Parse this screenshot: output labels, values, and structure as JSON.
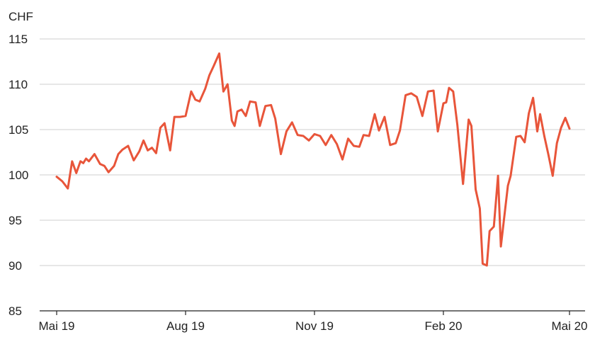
{
  "chart_data": {
    "type": "line",
    "ylabel": "CHF",
    "ylim": [
      85,
      115
    ],
    "yticks": [
      85,
      90,
      95,
      100,
      105,
      110,
      115
    ],
    "xlim": [
      "2019-05-01",
      "2020-05-01"
    ],
    "xticks": [
      "Mai 19",
      "Aug 19",
      "Nov 19",
      "Feb 20",
      "Mai 20"
    ],
    "xtick_dates": [
      "2019-05-01",
      "2019-08-01",
      "2019-11-01",
      "2020-02-01",
      "2020-05-01"
    ],
    "grid": "horizontal",
    "series_color": "#e8553a",
    "series": [
      {
        "x": [
          "2019-05-01",
          "2019-05-05",
          "2019-05-09",
          "2019-05-12",
          "2019-05-15",
          "2019-05-18",
          "2019-05-20",
          "2019-05-22",
          "2019-05-24",
          "2019-05-28",
          "2019-06-01",
          "2019-06-04",
          "2019-06-07",
          "2019-06-11",
          "2019-06-14",
          "2019-06-17",
          "2019-06-21",
          "2019-06-25",
          "2019-06-29",
          "2019-07-02",
          "2019-07-05",
          "2019-07-08",
          "2019-07-11",
          "2019-07-14",
          "2019-07-17",
          "2019-07-21",
          "2019-07-24",
          "2019-07-28",
          "2019-08-01",
          "2019-08-05",
          "2019-08-08",
          "2019-08-11",
          "2019-08-15",
          "2019-08-18",
          "2019-08-21",
          "2019-08-25",
          "2019-08-28",
          "2019-08-31",
          "2019-09-03",
          "2019-09-05",
          "2019-09-07",
          "2019-09-10",
          "2019-09-13",
          "2019-09-16",
          "2019-09-20",
          "2019-09-23",
          "2019-09-27",
          "2019-10-01",
          "2019-10-04",
          "2019-10-08",
          "2019-10-12",
          "2019-10-16",
          "2019-10-20",
          "2019-10-24",
          "2019-10-28",
          "2019-11-01",
          "2019-11-05",
          "2019-11-09",
          "2019-11-13",
          "2019-11-17",
          "2019-11-21",
          "2019-11-25",
          "2019-11-29",
          "2019-12-03",
          "2019-12-06",
          "2019-12-10",
          "2019-12-14",
          "2019-12-17",
          "2019-12-21",
          "2019-12-25",
          "2019-12-29",
          "2020-01-01",
          "2020-01-05",
          "2020-01-09",
          "2020-01-13",
          "2020-01-17",
          "2020-01-21",
          "2020-01-25",
          "2020-01-28",
          "2020-02-01",
          "2020-02-03",
          "2020-02-05",
          "2020-02-08",
          "2020-02-11",
          "2020-02-15",
          "2020-02-19",
          "2020-02-21",
          "2020-02-24",
          "2020-02-27",
          "2020-02-29",
          "2020-03-03",
          "2020-03-05",
          "2020-03-08",
          "2020-03-11",
          "2020-03-13",
          "2020-03-16",
          "2020-03-18",
          "2020-03-20",
          "2020-03-24",
          "2020-03-27",
          "2020-03-30",
          "2020-04-02",
          "2020-04-05",
          "2020-04-08",
          "2020-04-10",
          "2020-04-13",
          "2020-04-16",
          "2020-04-19",
          "2020-04-22",
          "2020-04-25",
          "2020-04-28",
          "2020-05-01"
        ],
        "values": [
          99.8,
          99.3,
          98.5,
          101.5,
          100.2,
          101.5,
          101.3,
          101.8,
          101.5,
          102.3,
          101.2,
          101.0,
          100.3,
          101.0,
          102.3,
          102.8,
          103.2,
          101.6,
          102.6,
          103.8,
          102.7,
          103.0,
          102.4,
          105.2,
          105.7,
          102.7,
          106.4,
          106.4,
          106.5,
          109.2,
          108.3,
          108.1,
          109.5,
          111.0,
          112.0,
          113.4,
          109.2,
          110.0,
          106.0,
          105.4,
          107.0,
          107.2,
          106.5,
          108.1,
          108.0,
          105.4,
          107.6,
          107.7,
          106.2,
          102.3,
          104.8,
          105.8,
          104.4,
          104.3,
          103.8,
          104.5,
          104.3,
          103.3,
          104.4,
          103.4,
          101.7,
          104.0,
          103.2,
          103.1,
          104.4,
          104.3,
          106.7,
          104.9,
          106.4,
          103.3,
          103.5,
          104.9,
          108.8,
          109.0,
          108.6,
          106.5,
          109.2,
          109.3,
          104.8,
          107.9,
          108.0,
          109.6,
          109.2,
          105.5,
          99.0,
          106.1,
          105.4,
          98.4,
          96.3,
          90.2,
          90.0,
          93.8,
          94.3,
          99.9,
          92.1,
          96.1,
          98.8,
          99.9,
          104.2,
          104.3,
          103.6,
          106.8,
          108.5,
          104.8,
          106.7,
          104.3,
          102.2,
          99.9,
          103.5,
          105.2,
          106.3,
          105.1
        ]
      }
    ]
  }
}
